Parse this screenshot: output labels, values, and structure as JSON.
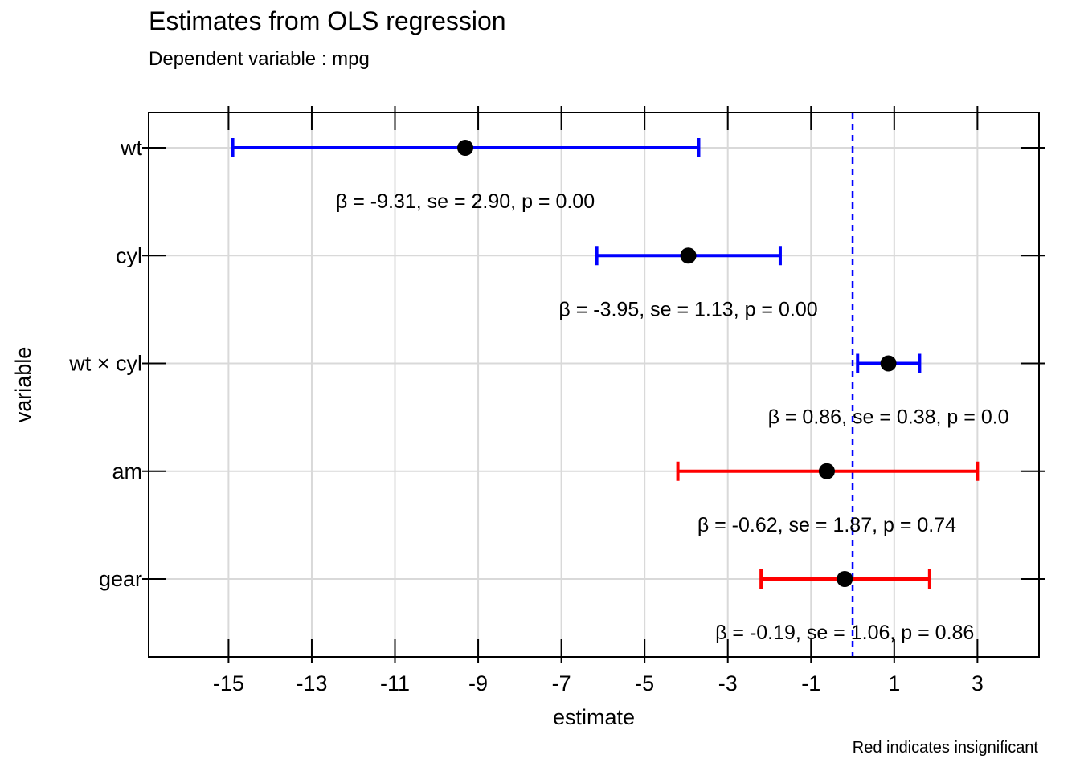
{
  "title": "Estimates from OLS regression",
  "subtitle": "Dependent variable : mpg",
  "caption": "Red indicates insignificant",
  "chart_data": {
    "type": "scatter",
    "subtype": "coefficient-plot-with-error-bars",
    "xlabel": "estimate",
    "ylabel": "variable",
    "xlim": [
      -16.92,
      4.48
    ],
    "x_ticks": [
      -15,
      -13,
      -11,
      -9,
      -7,
      -5,
      -3,
      -1,
      1,
      3
    ],
    "x_tick_labels": [
      "-15",
      "-13",
      "-11",
      "-9",
      "-7",
      "-5",
      "-3",
      "-1",
      "1",
      "3"
    ],
    "reference_line_x": 0,
    "grid": true,
    "colors": {
      "significant": "#0000ff",
      "insignificant": "#ff0000",
      "point": "#000000",
      "reference_line": "#0000ff",
      "grid": "#d9d9d9"
    },
    "terms": [
      {
        "term": "wt",
        "estimate": -9.31,
        "ci_low": -14.9,
        "ci_high": -3.7,
        "se": 2.9,
        "p": 0.0,
        "label": "β = -9.31, se = 2.90, p = 0.00",
        "significant": true
      },
      {
        "term": "cyl",
        "estimate": -3.95,
        "ci_low": -6.15,
        "ci_high": -1.74,
        "se": 1.13,
        "p": 0.0,
        "label": "β = -3.95, se = 1.13, p = 0.00",
        "significant": true
      },
      {
        "term": "wt × cyl",
        "estimate": 0.86,
        "ci_low": 0.12,
        "ci_high": 1.61,
        "se": 0.38,
        "p": null,
        "label": "β =  0.86, se = 0.38, p = 0.0",
        "significant": true
      },
      {
        "term": "am",
        "estimate": -0.62,
        "ci_low": -4.2,
        "ci_high": 3.0,
        "se": 1.87,
        "p": 0.74,
        "label": "β = -0.62, se = 1.87, p = 0.74",
        "significant": false
      },
      {
        "term": "gear",
        "estimate": -0.19,
        "ci_low": -2.2,
        "ci_high": 1.85,
        "se": 1.06,
        "p": 0.86,
        "label": "β = -0.19, se = 1.06, p = 0.86",
        "significant": false
      }
    ]
  }
}
